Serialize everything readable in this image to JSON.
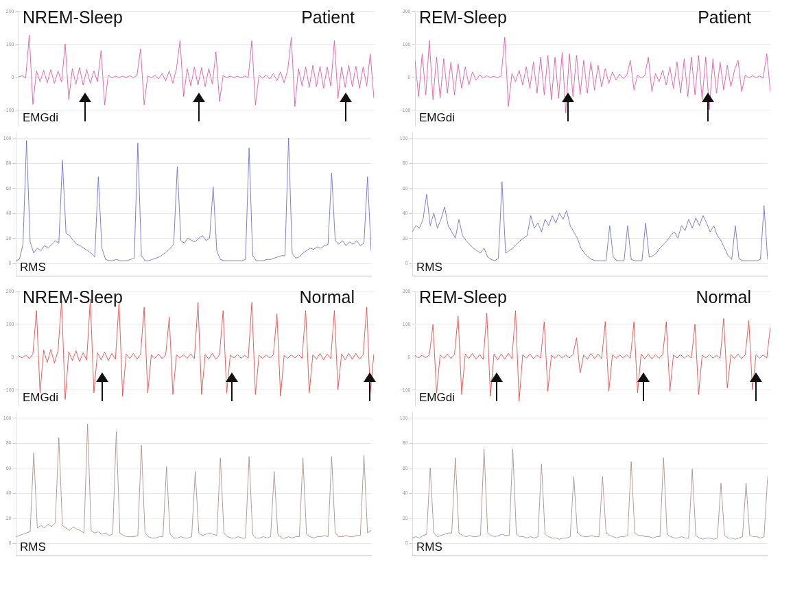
{
  "chart_data": [
    {
      "type": "line",
      "title": "NREM-Sleep",
      "subtitle": "Patient",
      "ylabel": "EMGdi",
      "color": "#e8589f",
      "ylim": [
        -150,
        200
      ],
      "yticks": [
        -100,
        0,
        100,
        200
      ],
      "grid": "y",
      "categories": [
        null,
        null,
        null,
        null,
        null,
        null,
        null,
        null,
        null,
        null,
        null,
        null,
        null,
        null,
        null,
        null,
        null,
        null,
        null,
        null,
        null,
        null,
        null,
        null,
        null,
        null,
        null,
        null,
        null,
        null,
        null,
        null,
        null,
        null,
        null,
        null,
        null,
        null,
        null,
        null,
        null,
        null,
        null,
        null,
        null,
        null,
        null,
        null,
        null,
        null,
        null,
        null,
        null,
        null,
        null,
        null,
        null,
        null,
        null,
        null,
        null,
        null,
        null,
        null,
        null,
        null,
        null,
        null,
        null,
        null,
        null,
        null,
        null,
        null,
        null,
        null,
        null,
        null,
        null,
        null,
        null,
        null,
        null,
        null,
        null,
        null,
        null,
        null,
        null,
        null,
        null,
        null,
        null,
        null,
        null,
        null,
        null,
        null,
        null,
        null
      ],
      "values": [
        0,
        3,
        -3,
        127,
        -84,
        18,
        -15,
        20,
        -18,
        22,
        -20,
        18,
        -16,
        100,
        -70,
        25,
        -22,
        28,
        -25,
        22,
        -20,
        18,
        -15,
        80,
        -85,
        5,
        -3,
        2,
        -2,
        2,
        -2,
        3,
        -2,
        4,
        85,
        -85,
        3,
        -3,
        5,
        -6,
        10,
        -12,
        18,
        -20,
        25,
        110,
        -60,
        25,
        -28,
        30,
        -25,
        28,
        -30,
        25,
        -22,
        75,
        -75,
        4,
        -3,
        2,
        -2,
        2,
        -3,
        2,
        -2,
        110,
        -85,
        4,
        -3,
        5,
        -6,
        10,
        -12,
        15,
        -18,
        20,
        120,
        -90,
        25,
        -28,
        30,
        -32,
        35,
        -30,
        32,
        -35,
        30,
        -28,
        110,
        -65,
        30,
        -32,
        35,
        -30,
        32,
        -35,
        30,
        -28,
        70,
        -65
      ]
    },
    {
      "type": "line",
      "ylabel": "RMS",
      "color": "#6f6fd8",
      "ylim": [
        -10,
        105
      ],
      "yticks": [
        0,
        20,
        40,
        60,
        80,
        100
      ],
      "grid": "y",
      "categories": [
        null,
        null,
        null,
        null,
        null,
        null,
        null,
        null,
        null,
        null,
        null,
        null,
        null,
        null,
        null,
        null,
        null,
        null,
        null,
        null,
        null,
        null,
        null,
        null,
        null,
        null,
        null,
        null,
        null,
        null,
        null,
        null,
        null,
        null,
        null,
        null,
        null,
        null,
        null,
        null,
        null,
        null,
        null,
        null,
        null,
        null,
        null,
        null,
        null,
        null,
        null,
        null,
        null,
        null,
        null,
        null,
        null,
        null,
        null,
        null,
        null,
        null,
        null,
        null,
        null,
        null,
        null,
        null,
        null,
        null,
        null,
        null,
        null,
        null,
        null,
        null,
        null,
        null,
        null,
        null,
        null,
        null,
        null,
        null,
        null,
        null,
        null,
        null,
        null,
        null,
        null,
        null,
        null,
        null,
        null,
        null,
        null,
        null,
        null,
        null
      ],
      "values": [
        2,
        3,
        15,
        98,
        17,
        8,
        12,
        10,
        14,
        12,
        15,
        18,
        16,
        82,
        24,
        22,
        18,
        15,
        14,
        12,
        10,
        8,
        5,
        69,
        12,
        3,
        2,
        2,
        3,
        2,
        2,
        2,
        3,
        4,
        96,
        6,
        2,
        2,
        3,
        4,
        5,
        7,
        9,
        12,
        15,
        77,
        18,
        16,
        20,
        18,
        17,
        20,
        22,
        18,
        20,
        61,
        10,
        3,
        2,
        2,
        2,
        2,
        2,
        2,
        3,
        92,
        6,
        2,
        2,
        2,
        3,
        3,
        4,
        5,
        6,
        6,
        100,
        8,
        4,
        5,
        8,
        10,
        12,
        11,
        13,
        12,
        14,
        15,
        72,
        18,
        15,
        18,
        14,
        17,
        15,
        18,
        14,
        16,
        69,
        10
      ]
    },
    {
      "type": "line",
      "title": "REM-Sleep",
      "subtitle": "Patient",
      "ylabel": "EMGdi",
      "color": "#e8589f",
      "ylim": [
        -150,
        200
      ],
      "yticks": [
        -100,
        0,
        100,
        200
      ],
      "grid": "y",
      "categories": [
        null,
        null,
        null,
        null,
        null,
        null,
        null,
        null,
        null,
        null,
        null,
        null,
        null,
        null,
        null,
        null,
        null,
        null,
        null,
        null,
        null,
        null,
        null,
        null,
        null,
        null,
        null,
        null,
        null,
        null,
        null,
        null,
        null,
        null,
        null,
        null,
        null,
        null,
        null,
        null,
        null,
        null,
        null,
        null,
        null,
        null,
        null,
        null,
        null,
        null,
        null,
        null,
        null,
        null,
        null,
        null,
        null,
        null,
        null,
        null,
        null,
        null,
        null,
        null,
        null,
        null,
        null,
        null,
        null,
        null,
        null,
        null,
        null,
        null,
        null,
        null,
        null,
        null,
        null,
        null,
        null,
        null,
        null,
        null,
        null,
        null,
        null,
        null,
        null,
        null,
        null,
        null,
        null,
        null,
        null,
        null,
        null,
        null,
        null,
        null
      ],
      "values": [
        50,
        -60,
        70,
        -55,
        110,
        -70,
        60,
        -65,
        55,
        -50,
        45,
        -55,
        40,
        -35,
        30,
        -25,
        15,
        -10,
        5,
        -3,
        3,
        -2,
        2,
        -3,
        3,
        120,
        -90,
        10,
        -15,
        20,
        -25,
        30,
        -35,
        45,
        -50,
        60,
        -55,
        65,
        -70,
        60,
        -65,
        75,
        -110,
        70,
        -60,
        65,
        -55,
        50,
        -50,
        45,
        -40,
        35,
        -30,
        25,
        -20,
        15,
        -10,
        8,
        -5,
        5,
        50,
        -40,
        5,
        -3,
        3,
        60,
        -45,
        10,
        -15,
        20,
        -25,
        30,
        -35,
        45,
        -50,
        55,
        -60,
        60,
        -55,
        65,
        -70,
        60,
        -100,
        55,
        -50,
        45,
        -40,
        35,
        -30,
        20,
        50,
        -45,
        5,
        -3,
        3,
        -2,
        2,
        -3,
        70,
        -45
      ]
    },
    {
      "type": "line",
      "ylabel": "RMS",
      "color": "#6f6fd8",
      "ylim": [
        -10,
        105
      ],
      "yticks": [
        0,
        20,
        40,
        60,
        80,
        100
      ],
      "grid": "y",
      "categories": [
        null,
        null,
        null,
        null,
        null,
        null,
        null,
        null,
        null,
        null,
        null,
        null,
        null,
        null,
        null,
        null,
        null,
        null,
        null,
        null,
        null,
        null,
        null,
        null,
        null,
        null,
        null,
        null,
        null,
        null,
        null,
        null,
        null,
        null,
        null,
        null,
        null,
        null,
        null,
        null,
        null,
        null,
        null,
        null,
        null,
        null,
        null,
        null,
        null,
        null,
        null,
        null,
        null,
        null,
        null,
        null,
        null,
        null,
        null,
        null,
        null,
        null,
        null,
        null,
        null,
        null,
        null,
        null,
        null,
        null,
        null,
        null,
        null,
        null,
        null,
        null,
        null,
        null,
        null,
        null,
        null,
        null,
        null,
        null,
        null,
        null,
        null,
        null,
        null,
        null,
        null,
        null,
        null,
        null,
        null,
        null,
        null,
        null,
        null,
        null
      ],
      "values": [
        25,
        30,
        28,
        35,
        55,
        30,
        40,
        28,
        35,
        45,
        30,
        25,
        20,
        35,
        22,
        18,
        15,
        12,
        10,
        8,
        12,
        5,
        3,
        2,
        4,
        65,
        8,
        10,
        12,
        15,
        18,
        20,
        22,
        38,
        28,
        32,
        25,
        35,
        30,
        38,
        32,
        40,
        35,
        42,
        30,
        25,
        20,
        12,
        8,
        5,
        3,
        2,
        2,
        2,
        2,
        30,
        5,
        2,
        2,
        2,
        30,
        3,
        2,
        2,
        2,
        32,
        5,
        6,
        8,
        12,
        15,
        18,
        22,
        25,
        20,
        30,
        26,
        35,
        28,
        36,
        30,
        38,
        32,
        25,
        30,
        22,
        18,
        12,
        6,
        3,
        30,
        4,
        2,
        2,
        2,
        2,
        2,
        3,
        46,
        3
      ]
    },
    {
      "type": "line",
      "title": "NREM-Sleep",
      "subtitle": "Normal",
      "ylabel": "EMGdi",
      "color": "#f04848",
      "ylim": [
        -150,
        200
      ],
      "yticks": [
        -100,
        0,
        100,
        200
      ],
      "grid": "y",
      "categories": [
        null,
        null,
        null,
        null,
        null,
        null,
        null,
        null,
        null,
        null,
        null,
        null,
        null,
        null,
        null,
        null,
        null,
        null,
        null,
        null,
        null,
        null,
        null,
        null,
        null,
        null,
        null,
        null,
        null,
        null,
        null,
        null,
        null,
        null,
        null,
        null,
        null,
        null,
        null,
        null,
        null,
        null,
        null,
        null,
        null,
        null,
        null,
        null,
        null,
        null,
        null,
        null,
        null,
        null,
        null,
        null,
        null,
        null,
        null,
        null,
        null,
        null,
        null,
        null,
        null,
        null,
        null,
        null,
        null,
        null,
        null,
        null,
        null,
        null,
        null,
        null,
        null,
        null,
        null,
        null,
        null,
        null,
        null,
        null,
        null,
        null,
        null,
        null,
        null,
        null,
        null,
        null,
        null,
        null,
        null,
        null,
        null,
        null,
        null,
        null
      ],
      "values": [
        3,
        -4,
        5,
        -6,
        8,
        140,
        -110,
        20,
        -18,
        22,
        -20,
        18,
        170,
        -130,
        15,
        -12,
        18,
        -15,
        12,
        -10,
        175,
        -110,
        12,
        -10,
        14,
        -12,
        10,
        -8,
        165,
        -120,
        8,
        -6,
        10,
        -8,
        6,
        150,
        -110,
        6,
        -5,
        8,
        -6,
        5,
        120,
        -115,
        5,
        -4,
        6,
        -5,
        8,
        -6,
        165,
        -115,
        6,
        -8,
        10,
        -8,
        6,
        140,
        -110,
        5,
        -4,
        6,
        -5,
        4,
        -5,
        165,
        -115,
        4,
        -5,
        5,
        -4,
        5,
        130,
        -120,
        4,
        -5,
        5,
        -4,
        6,
        -5,
        140,
        -110,
        6,
        -8,
        10,
        -10,
        8,
        -6,
        140,
        -100,
        8,
        -10,
        10,
        -8,
        10,
        -8,
        6,
        150,
        -110,
        8
      ]
    },
    {
      "type": "line",
      "ylabel": "RMS",
      "color": "#a89290",
      "ylim": [
        -10,
        105
      ],
      "yticks": [
        0,
        20,
        40,
        60,
        80,
        100
      ],
      "grid": "y",
      "categories": [
        null,
        null,
        null,
        null,
        null,
        null,
        null,
        null,
        null,
        null,
        null,
        null,
        null,
        null,
        null,
        null,
        null,
        null,
        null,
        null,
        null,
        null,
        null,
        null,
        null,
        null,
        null,
        null,
        null,
        null,
        null,
        null,
        null,
        null,
        null,
        null,
        null,
        null,
        null,
        null,
        null,
        null,
        null,
        null,
        null,
        null,
        null,
        null,
        null,
        null,
        null,
        null,
        null,
        null,
        null,
        null,
        null,
        null,
        null,
        null,
        null,
        null,
        null,
        null,
        null,
        null,
        null,
        null,
        null,
        null,
        null,
        null,
        null,
        null,
        null,
        null,
        null,
        null,
        null,
        null,
        null,
        null,
        null,
        null,
        null,
        null,
        null,
        null,
        null,
        null,
        null,
        null,
        null,
        null,
        null,
        null,
        null,
        null,
        null,
        null
      ],
      "values": [
        5,
        6,
        7,
        8,
        9,
        72,
        12,
        14,
        12,
        15,
        13,
        16,
        84,
        14,
        12,
        10,
        13,
        11,
        10,
        8,
        95,
        10,
        8,
        9,
        7,
        8,
        6,
        7,
        89,
        8,
        6,
        5,
        5,
        5,
        6,
        78,
        8,
        5,
        4,
        4,
        5,
        5,
        61,
        7,
        4,
        4,
        5,
        4,
        4,
        5,
        57,
        8,
        6,
        7,
        8,
        7,
        6,
        68,
        8,
        5,
        4,
        4,
        5,
        4,
        4,
        69,
        7,
        4,
        4,
        5,
        4,
        5,
        57,
        7,
        4,
        4,
        5,
        4,
        5,
        5,
        68,
        7,
        5,
        4,
        5,
        5,
        6,
        5,
        69,
        8,
        5,
        5,
        6,
        5,
        5,
        6,
        6,
        70,
        8,
        10
      ]
    },
    {
      "type": "line",
      "title": "REM-Sleep",
      "subtitle": "Normal",
      "ylabel": "EMGdi",
      "color": "#f04848",
      "ylim": [
        -150,
        200
      ],
      "yticks": [
        -100,
        0,
        100,
        200
      ],
      "grid": "y",
      "categories": [
        null,
        null,
        null,
        null,
        null,
        null,
        null,
        null,
        null,
        null,
        null,
        null,
        null,
        null,
        null,
        null,
        null,
        null,
        null,
        null,
        null,
        null,
        null,
        null,
        null,
        null,
        null,
        null,
        null,
        null,
        null,
        null,
        null,
        null,
        null,
        null,
        null,
        null,
        null,
        null,
        null,
        null,
        null,
        null,
        null,
        null,
        null,
        null,
        null,
        null,
        null,
        null,
        null,
        null,
        null,
        null,
        null,
        null,
        null,
        null,
        null,
        null,
        null,
        null,
        null,
        null,
        null,
        null,
        null,
        null,
        null,
        null,
        null,
        null,
        null,
        null,
        null,
        null,
        null,
        null,
        null,
        null,
        null,
        null,
        null,
        null,
        null,
        null,
        null,
        null,
        null,
        null,
        null,
        null,
        null,
        null,
        null,
        null,
        null,
        null
      ],
      "values": [
        3,
        -4,
        4,
        -3,
        5,
        98,
        -110,
        6,
        -5,
        8,
        -6,
        7,
        124,
        -115,
        8,
        -6,
        10,
        -8,
        6,
        -8,
        133,
        -120,
        8,
        -10,
        8,
        -8,
        10,
        -6,
        139,
        -135,
        6,
        -5,
        8,
        -6,
        5,
        -4,
        106,
        -105,
        4,
        -5,
        6,
        -4,
        5,
        -4,
        6,
        57,
        -50,
        6,
        -8,
        10,
        -6,
        8,
        -6,
        106,
        -105,
        6,
        -5,
        5,
        -4,
        6,
        -5,
        106,
        -110,
        8,
        -6,
        8,
        -7,
        6,
        -5,
        6,
        106,
        -105,
        5,
        -4,
        6,
        -5,
        5,
        -4,
        98,
        -115,
        5,
        -4,
        6,
        -5,
        4,
        -5,
        116,
        -95,
        6,
        -5,
        8,
        -6,
        5,
        110,
        -100,
        6,
        -5,
        5,
        -4,
        90
      ]
    },
    {
      "type": "line",
      "ylabel": "RMS",
      "color": "#a89290",
      "ylim": [
        -10,
        105
      ],
      "yticks": [
        0,
        20,
        40,
        60,
        80,
        100
      ],
      "grid": "y",
      "categories": [
        null,
        null,
        null,
        null,
        null,
        null,
        null,
        null,
        null,
        null,
        null,
        null,
        null,
        null,
        null,
        null,
        null,
        null,
        null,
        null,
        null,
        null,
        null,
        null,
        null,
        null,
        null,
        null,
        null,
        null,
        null,
        null,
        null,
        null,
        null,
        null,
        null,
        null,
        null,
        null,
        null,
        null,
        null,
        null,
        null,
        null,
        null,
        null,
        null,
        null,
        null,
        null,
        null,
        null,
        null,
        null,
        null,
        null,
        null,
        null,
        null,
        null,
        null,
        null,
        null,
        null,
        null,
        null,
        null,
        null,
        null,
        null,
        null,
        null,
        null,
        null,
        null,
        null,
        null,
        null,
        null,
        null,
        null,
        null,
        null,
        null,
        null,
        null,
        null,
        null,
        null,
        null,
        null,
        null,
        null,
        null,
        null,
        null,
        null,
        null
      ],
      "values": [
        4,
        5,
        4,
        6,
        7,
        60,
        8,
        5,
        6,
        7,
        8,
        8,
        68,
        8,
        6,
        5,
        6,
        5,
        5,
        6,
        75,
        8,
        6,
        5,
        6,
        7,
        6,
        6,
        75,
        7,
        5,
        5,
        4,
        5,
        4,
        5,
        63,
        7,
        5,
        4,
        4,
        3,
        4,
        4,
        5,
        53,
        8,
        6,
        5,
        5,
        6,
        5,
        5,
        53,
        8,
        6,
        5,
        4,
        5,
        5,
        6,
        65,
        8,
        6,
        6,
        5,
        5,
        4,
        5,
        5,
        68,
        7,
        5,
        4,
        4,
        5,
        4,
        4,
        59,
        6,
        4,
        3,
        4,
        4,
        3,
        4,
        48,
        6,
        4,
        4,
        3,
        4,
        5,
        48,
        6,
        5,
        5,
        4,
        5,
        53
      ]
    }
  ]
}
